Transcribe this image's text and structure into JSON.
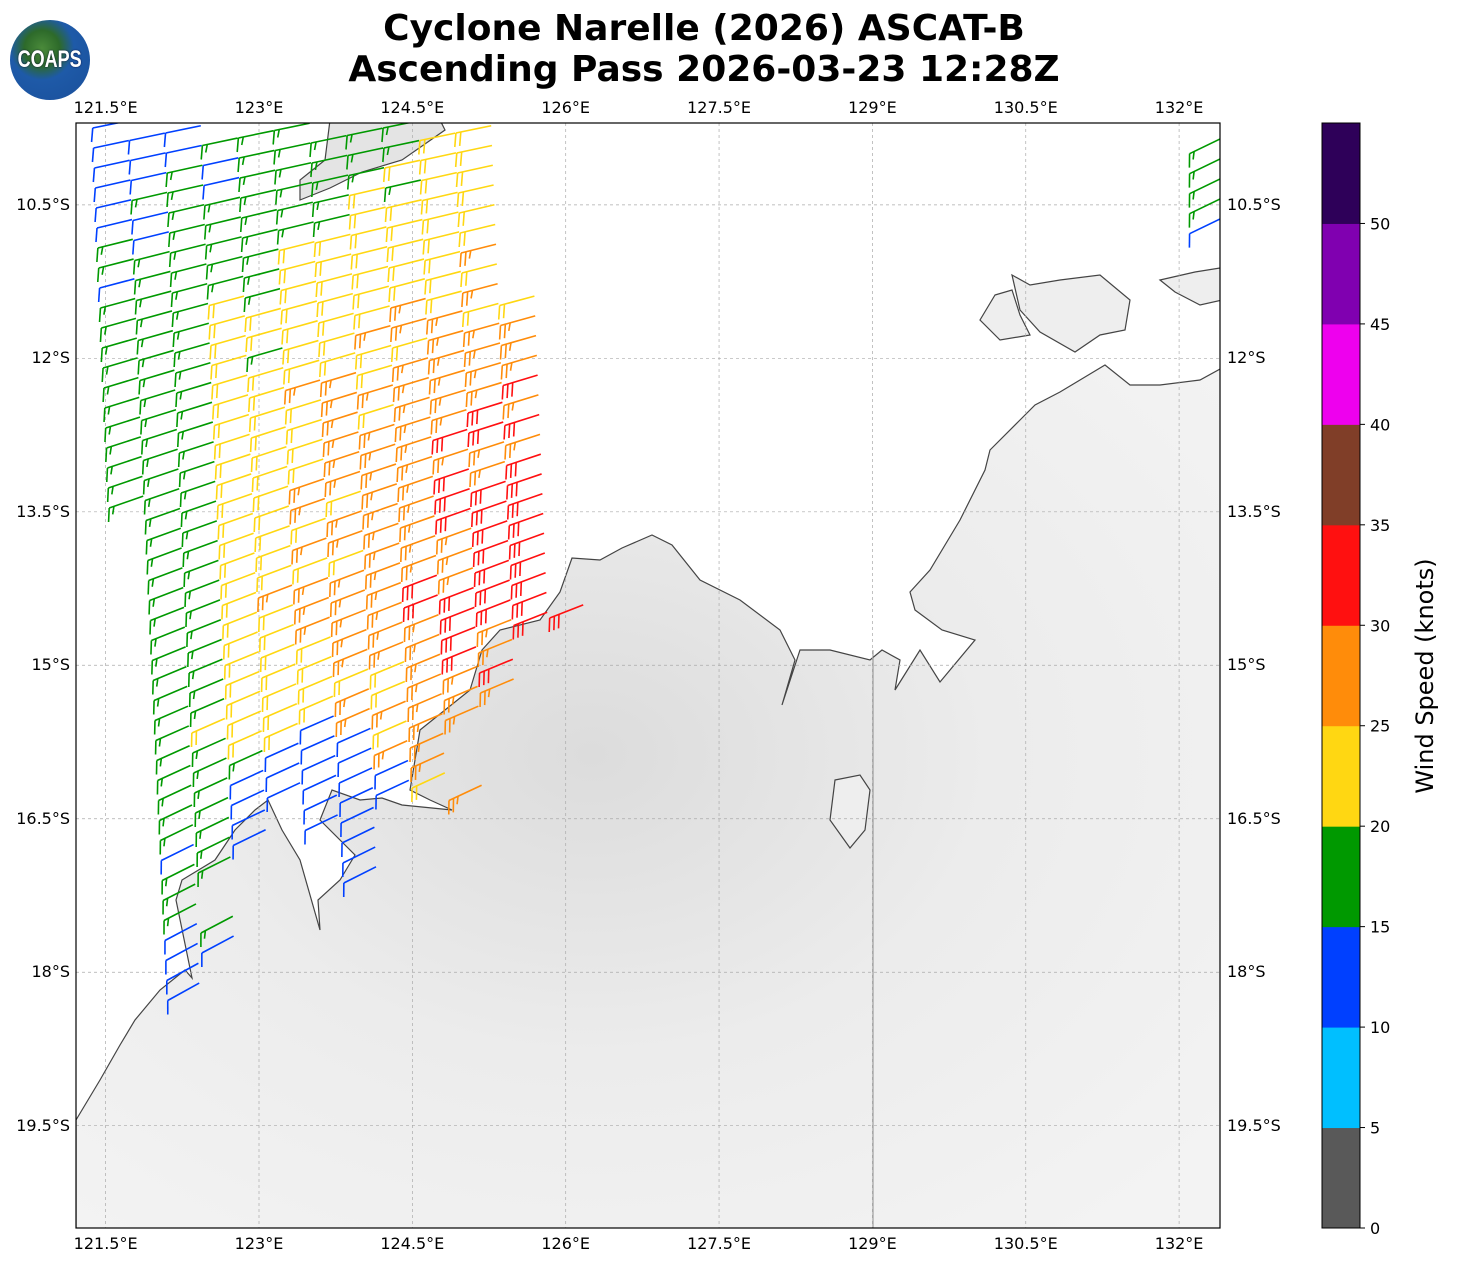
{
  "title_line1": "Cyclone Narelle (2026) ASCAT-B",
  "title_line2": "Ascending Pass 2026-03-23 12:28Z",
  "logo_text": "COAPS",
  "map": {
    "lon_ticks": [
      "121.5°E",
      "123°E",
      "124.5°E",
      "126°E",
      "127.5°E",
      "129°E",
      "130.5°E",
      "132°E"
    ],
    "lon_values": [
      121.5,
      123,
      124.5,
      126,
      127.5,
      129,
      130.5,
      132
    ],
    "lat_ticks": [
      "10.5°S",
      "12°S",
      "13.5°S",
      "15°S",
      "16.5°S",
      "18°S",
      "19.5°S"
    ],
    "lat_values": [
      -10.5,
      -12,
      -13.5,
      -15,
      -16.5,
      -18,
      -19.5
    ],
    "lon_range": [
      121.21,
      132.4
    ],
    "lat_range": [
      -9.7,
      -20.5
    ]
  },
  "colorbar": {
    "label": "Wind Speed (knots)",
    "ticks": [
      "0",
      "5",
      "10",
      "15",
      "20",
      "25",
      "30",
      "35",
      "40",
      "45",
      "50"
    ],
    "bounds": [
      0,
      5,
      10,
      15,
      20,
      25,
      30,
      35,
      40,
      45,
      50,
      55
    ],
    "colors": [
      "#595959",
      "#00bfff",
      "#0040ff",
      "#009900",
      "#ffd712",
      "#ff8c0a",
      "#ff1010",
      "#803e28",
      "#ee00ee",
      "#8000b0",
      "#2e0059"
    ]
  }
}
